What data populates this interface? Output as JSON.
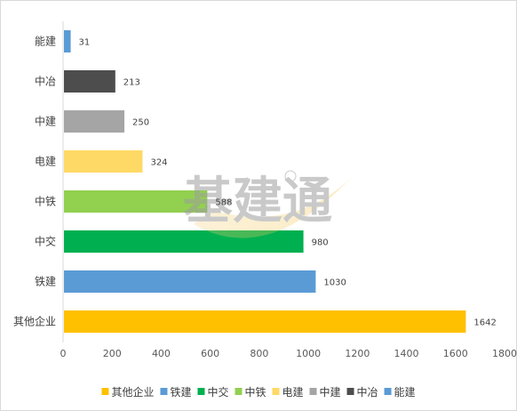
{
  "chart_data": {
    "type": "bar",
    "orientation": "horizontal",
    "categories": [
      "能建",
      "中冶",
      "中建",
      "电建",
      "中铁",
      "中交",
      "铁建",
      "其他企业"
    ],
    "values": [
      31,
      213,
      250,
      324,
      588,
      980,
      1030,
      1642
    ],
    "colors": [
      "#5b9bd5",
      "#4d4d4d",
      "#a5a5a5",
      "#ffd966",
      "#92d050",
      "#00b050",
      "#5b9bd5",
      "#ffc000"
    ],
    "xlim": [
      0,
      1800
    ],
    "xticks": [
      0,
      200,
      400,
      600,
      800,
      1000,
      1200,
      1400,
      1600,
      1800
    ],
    "title": "",
    "xlabel": "",
    "ylabel": "",
    "grid": false,
    "legend_position": "bottom",
    "legend": [
      {
        "label": "其他企业",
        "color": "#ffc000"
      },
      {
        "label": "铁建",
        "color": "#5b9bd5"
      },
      {
        "label": "中交",
        "color": "#00b050"
      },
      {
        "label": "中铁",
        "color": "#92d050"
      },
      {
        "label": "电建",
        "color": "#ffd966"
      },
      {
        "label": "中建",
        "color": "#a5a5a5"
      },
      {
        "label": "中冶",
        "color": "#4d4d4d"
      },
      {
        "label": "能建",
        "color": "#5b9bd5"
      }
    ]
  },
  "watermark": {
    "text": "基建通"
  }
}
